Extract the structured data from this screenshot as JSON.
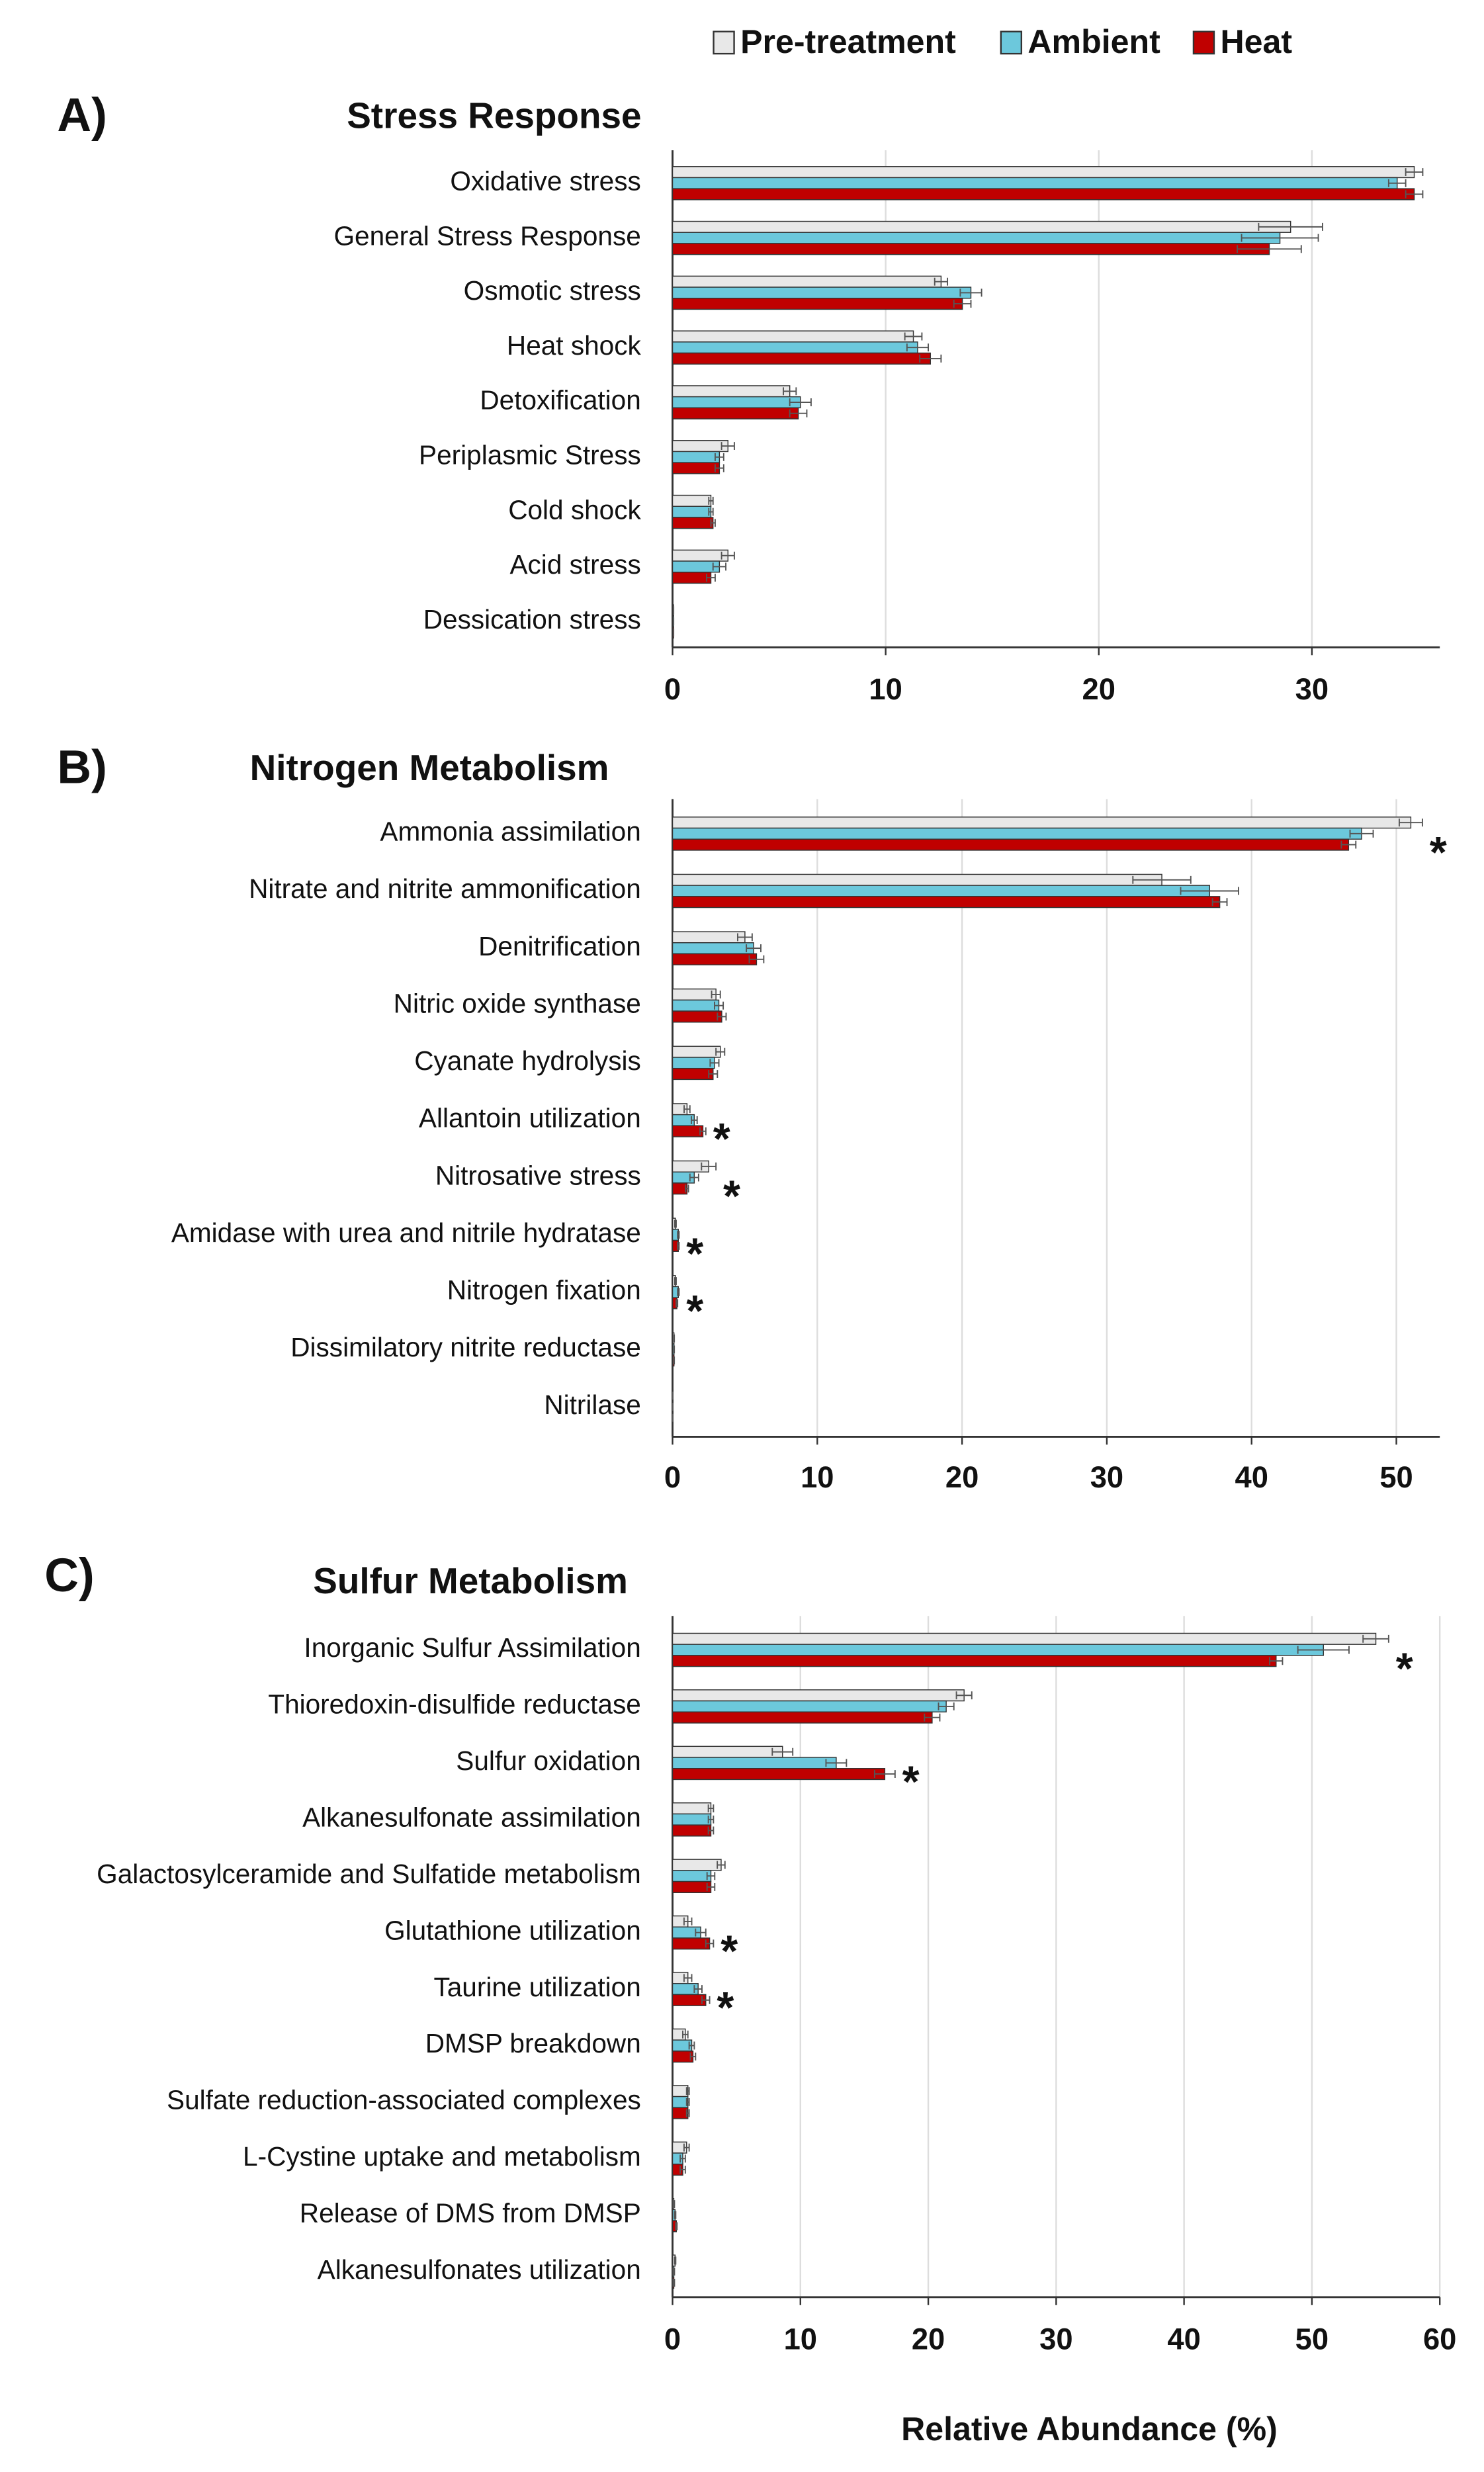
{
  "chart_data": [
    {
      "type": "bar",
      "orientation": "horizontal",
      "panel_label": "A)",
      "title": "Stress Response",
      "categories": [
        "Oxidative stress",
        "General Stress Response",
        "Osmotic stress",
        "Heat shock",
        "Detoxification",
        "Periplasmic Stress",
        "Cold shock",
        "Acid stress",
        "Dessication stress"
      ],
      "series": [
        {
          "name": "Pre-treatment",
          "color": "#e8e8e8",
          "values": [
            34.8,
            29.0,
            12.6,
            11.3,
            5.5,
            2.6,
            1.8,
            2.6,
            0.05
          ],
          "errors": [
            0.4,
            1.5,
            0.3,
            0.4,
            0.3,
            0.3,
            0.1,
            0.3,
            0
          ]
        },
        {
          "name": "Ambient",
          "color": "#6cc8dc",
          "values": [
            34.0,
            28.5,
            14.0,
            11.5,
            6.0,
            2.2,
            1.8,
            2.2,
            0.05
          ],
          "errors": [
            0.4,
            1.8,
            0.5,
            0.5,
            0.5,
            0.2,
            0.1,
            0.3,
            0
          ]
        },
        {
          "name": "Heat",
          "color": "#c00000",
          "values": [
            34.8,
            28.0,
            13.6,
            12.1,
            5.9,
            2.2,
            1.9,
            1.8,
            0.05
          ],
          "errors": [
            0.4,
            1.5,
            0.4,
            0.5,
            0.4,
            0.2,
            0.1,
            0.2,
            0
          ]
        }
      ],
      "xlim": [
        0,
        36
      ],
      "xticks": [
        0,
        10,
        20,
        30
      ],
      "grid": true,
      "annotations": []
    },
    {
      "type": "bar",
      "orientation": "horizontal",
      "panel_label": "B)",
      "title": "Nitrogen Metabolism",
      "categories": [
        "Ammonia assimilation",
        "Nitrate and nitrite ammonification",
        "Denitrification",
        "Nitric oxide synthase",
        "Cyanate hydrolysis",
        "Allantoin utilization",
        "Nitrosative stress",
        "Amidase with urea and nitrile hydratase",
        "Nitrogen fixation",
        "Dissimilatory nitrite reductase",
        "Nitrilase"
      ],
      "series": [
        {
          "color": "#e8e8e8",
          "values": [
            51.0,
            33.8,
            5.0,
            3.0,
            3.3,
            1.0,
            2.5,
            0.2,
            0.2,
            0.1,
            0.02
          ],
          "errors": [
            0.8,
            2.0,
            0.5,
            0.3,
            0.3,
            0.2,
            0.5,
            0.05,
            0.05,
            0.02,
            0
          ]
        },
        {
          "color": "#6cc8dc",
          "values": [
            47.6,
            37.1,
            5.6,
            3.2,
            2.9,
            1.5,
            1.5,
            0.4,
            0.4,
            0.1,
            0.02
          ],
          "errors": [
            0.8,
            2.0,
            0.5,
            0.3,
            0.3,
            0.2,
            0.3,
            0.05,
            0.05,
            0.02,
            0
          ]
        },
        {
          "color": "#c00000",
          "values": [
            46.7,
            37.8,
            5.8,
            3.4,
            2.8,
            2.1,
            1.0,
            0.4,
            0.3,
            0.1,
            0.02
          ],
          "errors": [
            0.5,
            0.5,
            0.5,
            0.3,
            0.3,
            0.2,
            0.1,
            0.05,
            0.05,
            0.02,
            0
          ]
        }
      ],
      "xlim": [
        0,
        53
      ],
      "xticks": [
        0,
        10,
        20,
        30,
        40,
        50
      ],
      "grid": true,
      "annotations": [
        {
          "text": "*",
          "category": "Ammonia assimilation"
        },
        {
          "text": "*",
          "category": "Allantoin utilization"
        },
        {
          "text": "*",
          "category": "Nitrosative stress"
        },
        {
          "text": "*",
          "category": "Amidase with urea and nitrile hydratase"
        },
        {
          "text": "*",
          "category": "Nitrogen fixation"
        }
      ]
    },
    {
      "type": "bar",
      "orientation": "horizontal",
      "panel_label": "C)",
      "title": "Sulfur Metabolism",
      "categories": [
        "Inorganic Sulfur Assimilation",
        "Thioredoxin-disulfide reductase",
        "Sulfur oxidation",
        "Alkanesulfonate assimilation",
        "Galactosylceramide and Sulfatide metabolism",
        "Glutathione utilization",
        "Taurine utilization",
        "DMSP breakdown",
        "Sulfate reduction-associated complexes",
        "L-Cystine uptake and metabolism",
        "Release of DMS from DMSP",
        "Alkanesulfonates utilization"
      ],
      "series": [
        {
          "color": "#e8e8e8",
          "values": [
            55.0,
            22.8,
            8.6,
            3.0,
            3.8,
            1.2,
            1.2,
            1.0,
            1.2,
            1.1,
            0.1,
            0.2
          ],
          "errors": [
            1.0,
            0.6,
            0.8,
            0.2,
            0.3,
            0.3,
            0.3,
            0.2,
            0.1,
            0.2,
            0.05,
            0.05
          ]
        },
        {
          "color": "#6cc8dc",
          "values": [
            50.9,
            21.4,
            12.8,
            3.0,
            3.0,
            2.2,
            2.0,
            1.5,
            1.2,
            0.8,
            0.2,
            0.1
          ],
          "errors": [
            2.0,
            0.6,
            0.8,
            0.2,
            0.3,
            0.4,
            0.3,
            0.2,
            0.1,
            0.2,
            0.05,
            0.05
          ]
        },
        {
          "color": "#c00000",
          "values": [
            47.2,
            20.3,
            16.6,
            3.0,
            3.0,
            2.9,
            2.6,
            1.6,
            1.2,
            0.8,
            0.3,
            0.1
          ],
          "errors": [
            0.5,
            0.6,
            0.8,
            0.2,
            0.3,
            0.3,
            0.3,
            0.2,
            0.1,
            0.2,
            0.05,
            0.05
          ]
        }
      ],
      "xlim": [
        0,
        60
      ],
      "xticks": [
        0,
        10,
        20,
        30,
        40,
        50,
        60
      ],
      "grid": true,
      "x_label": "Relative Abundance (%)",
      "annotations": [
        {
          "text": "*",
          "category": "Inorganic Sulfur Assimilation"
        },
        {
          "text": "*",
          "category": "Sulfur oxidation"
        },
        {
          "text": "*",
          "category": "Glutathione utilization"
        },
        {
          "text": "*",
          "category": "Taurine utilization"
        }
      ]
    }
  ]
}
